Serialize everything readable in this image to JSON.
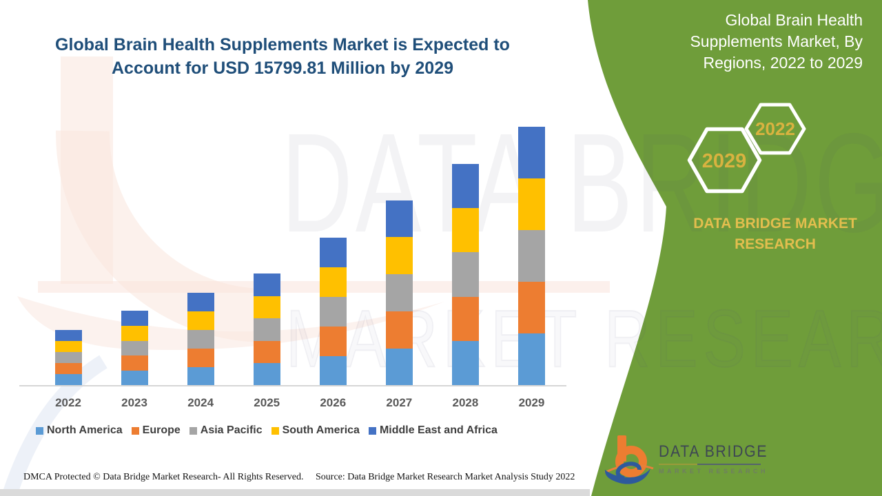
{
  "title": {
    "text": "Global Brain Health Supplements Market is Expected to Account for USD 15799.81 Million by 2029",
    "color": "#1F4E79"
  },
  "side_panel": {
    "background_color": "#6F9D3A",
    "heading": "Global Brain Health Supplements Market, By Regions, 2022 to 2029",
    "hexagons": [
      {
        "label": "2022"
      },
      {
        "label": "2029"
      }
    ],
    "hexagon_label_color": "#D9B240",
    "brand_text": "DATA BRIDGE MARKET RESEARCH",
    "brand_text_color": "#E3BE4E"
  },
  "logo": {
    "name": "DATA BRIDGE",
    "subtitle": "MARKET RESEARCH"
  },
  "watermarks": {
    "big_letters": "DATA BRIDGE",
    "outline_text": "MARKET RESEARCH"
  },
  "footer": {
    "left": "DMCA Protected © Data Bridge Market Research- All Rights Reserved.",
    "right": "Source: Data Bridge Market Research Market Analysis Study 2022"
  },
  "chart_data": {
    "type": "bar",
    "stacked": true,
    "unit": "USD Million",
    "title": "Global Brain Health Supplements Market, By Regions, 2022 to 2029",
    "xlabel": "",
    "ylabel": "",
    "ylim": [
      0,
      16000
    ],
    "grid": false,
    "legend_position": "bottom",
    "note": "Regional split read from pixel heights; the five regional segments appear equal in every bar. 2029 total matches the stated USD 15799.81 Million.",
    "categories": [
      "2022",
      "2023",
      "2024",
      "2025",
      "2026",
      "2027",
      "2028",
      "2029"
    ],
    "totals_estimated": [
      3400,
      4540,
      5670,
      6810,
      9030,
      11300,
      13530,
      15799.81
    ],
    "series": [
      {
        "name": "North America",
        "color": "#5B9BD5",
        "values": [
          680,
          908,
          1134,
          1362,
          1806,
          2260,
          2706,
          3159.96
        ]
      },
      {
        "name": "Europe",
        "color": "#ED7D31",
        "values": [
          680,
          908,
          1134,
          1362,
          1806,
          2260,
          2706,
          3159.96
        ]
      },
      {
        "name": "Asia Pacific",
        "color": "#A5A5A5",
        "values": [
          680,
          908,
          1134,
          1362,
          1806,
          2260,
          2706,
          3159.96
        ]
      },
      {
        "name": "South America",
        "color": "#FFC000",
        "values": [
          680,
          908,
          1134,
          1362,
          1806,
          2260,
          2706,
          3159.96
        ]
      },
      {
        "name": "Middle East and Africa",
        "color": "#4472C4",
        "values": [
          680,
          908,
          1134,
          1362,
          1806,
          2260,
          2706,
          3159.96
        ]
      }
    ]
  }
}
